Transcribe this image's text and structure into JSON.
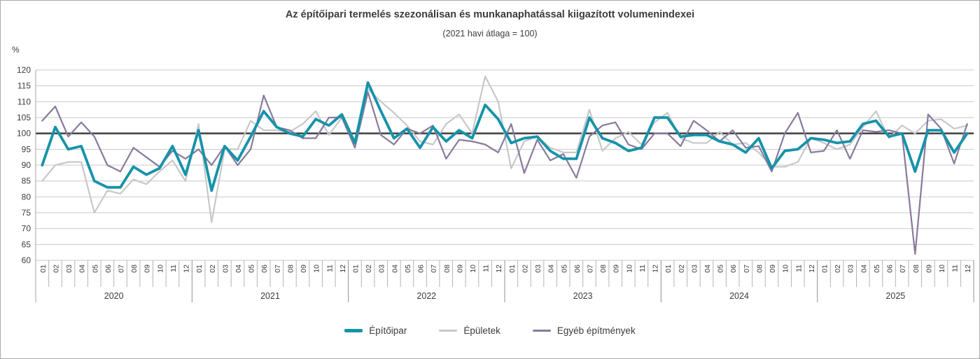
{
  "title": "Az építőipari termelés szezonálisan és munkanaphatással kiigazított volumenindexei",
  "subtitle": "(2021 havi átlaga = 100)",
  "y_axis": {
    "unit": "%",
    "min": 60,
    "max": 120,
    "step": 5,
    "baseline": 100,
    "tick_labels": [
      120,
      115,
      110,
      105,
      100,
      95,
      90,
      85,
      80,
      75,
      70,
      65,
      60
    ]
  },
  "x_axis": {
    "years": [
      "2020",
      "2021",
      "2022",
      "2023",
      "2024",
      "2025"
    ],
    "months": [
      "01",
      "02",
      "03",
      "04",
      "05",
      "06",
      "07",
      "08",
      "09",
      "10",
      "11",
      "12"
    ]
  },
  "legend": {
    "items": [
      {
        "label": "Építőipar",
        "color": "#1593a9"
      },
      {
        "label": "Épületek",
        "color": "#c7c8ca"
      },
      {
        "label": "Egyéb építmények",
        "color": "#887a9c"
      }
    ]
  },
  "colors": {
    "grid": "#cacaca",
    "baseline": "#3f3f3f",
    "text": "#3c3c3c",
    "tick": "#a0a0a0",
    "frame_border": "#aaaaaa",
    "background": "#ffffff"
  },
  "chart_data": {
    "type": "line",
    "title": "Az építőipari termelés szezonálisan és munkanaphatással kiigazított volumenindexei",
    "subtitle": "(2021 havi átlaga = 100)",
    "ylabel": "%",
    "ylim": [
      60,
      120
    ],
    "grid": true,
    "baseline": 100,
    "legend_position": "bottom",
    "categories": [
      "2020-01",
      "2020-02",
      "2020-03",
      "2020-04",
      "2020-05",
      "2020-06",
      "2020-07",
      "2020-08",
      "2020-09",
      "2020-10",
      "2020-11",
      "2020-12",
      "2021-01",
      "2021-02",
      "2021-03",
      "2021-04",
      "2021-05",
      "2021-06",
      "2021-07",
      "2021-08",
      "2021-09",
      "2021-10",
      "2021-11",
      "2021-12",
      "2022-01",
      "2022-02",
      "2022-03",
      "2022-04",
      "2022-05",
      "2022-06",
      "2022-07",
      "2022-08",
      "2022-09",
      "2022-10",
      "2022-11",
      "2022-12",
      "2023-01",
      "2023-02",
      "2023-03",
      "2023-04",
      "2023-05",
      "2023-06",
      "2023-07",
      "2023-08",
      "2023-09",
      "2023-10",
      "2023-11",
      "2023-12",
      "2024-01",
      "2024-02",
      "2024-03",
      "2024-04",
      "2024-05",
      "2024-06",
      "2024-07",
      "2024-08",
      "2024-09",
      "2024-10",
      "2024-11",
      "2024-12",
      "2025-01",
      "2025-02",
      "2025-03",
      "2025-04",
      "2025-05",
      "2025-06",
      "2025-07",
      "2025-08",
      "2025-09",
      "2025-10",
      "2025-11",
      "2025-12"
    ],
    "series": [
      {
        "name": "Építőipar",
        "color": "#1593a9",
        "width": 3.8,
        "values": [
          90,
          102,
          95,
          96,
          85,
          83,
          83,
          89.5,
          87,
          89,
          96,
          87,
          101,
          82,
          96,
          91.5,
          99,
          107,
          102,
          100,
          99,
          104.5,
          102.5,
          106,
          97,
          116,
          107,
          98.5,
          101.5,
          95.5,
          102,
          97.5,
          101,
          98.5,
          109,
          104.5,
          97,
          98.5,
          99,
          94.5,
          92,
          92,
          105,
          98.5,
          97,
          94.5,
          95.5,
          105,
          105,
          99,
          99.5,
          99.5,
          97.5,
          96.5,
          94,
          98.5,
          89,
          94.5,
          95,
          98.5,
          98,
          97,
          97.5,
          103,
          104,
          99,
          100,
          88,
          101,
          101,
          94,
          100
        ]
      },
      {
        "name": "Épületek",
        "color": "#c7c8ca",
        "width": 2.2,
        "values": [
          85,
          90,
          91,
          91,
          75,
          82,
          81,
          85.5,
          84,
          88,
          91.5,
          85,
          103,
          72,
          95,
          95,
          104,
          101,
          101,
          100.5,
          103,
          107,
          99.5,
          105,
          96.5,
          114,
          110,
          106.5,
          102.5,
          97.5,
          96.5,
          103,
          106,
          100,
          118,
          110,
          89,
          97.5,
          99,
          95.5,
          94,
          94,
          107.5,
          94.5,
          98.5,
          100.5,
          96.5,
          103.5,
          106.5,
          98.5,
          97,
          97,
          100.5,
          96.5,
          97,
          94,
          89.5,
          89.5,
          91,
          98.5,
          97,
          95,
          96.5,
          102,
          107,
          98.5,
          102.5,
          100,
          104,
          104.5,
          101.5,
          102.5
        ]
      },
      {
        "name": "Egyéb építmények",
        "color": "#887a9c",
        "width": 2.2,
        "values": [
          104,
          108.5,
          99,
          103.5,
          99,
          90,
          88,
          95.5,
          92.5,
          89.5,
          94.5,
          92,
          95,
          90,
          96,
          90,
          95,
          112,
          102,
          101,
          98.5,
          98.5,
          105,
          105,
          95.5,
          113,
          99.5,
          96.5,
          101.5,
          100,
          102.5,
          92,
          98,
          97.5,
          96.5,
          94,
          103,
          87.5,
          98,
          91.5,
          93.5,
          86,
          99,
          102.5,
          103.5,
          96.5,
          95,
          100,
          100,
          96,
          104,
          101,
          97.5,
          101,
          95.5,
          96,
          88,
          100,
          106.5,
          94,
          94.5,
          101,
          92,
          101,
          100.5,
          101,
          100,
          62,
          106,
          101.5,
          90.5,
          103
        ]
      }
    ]
  }
}
